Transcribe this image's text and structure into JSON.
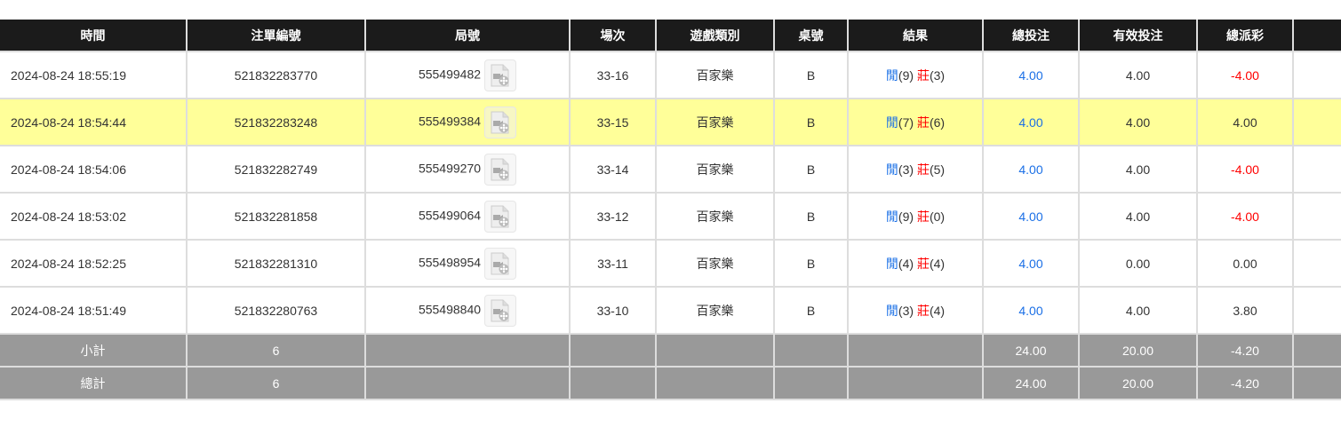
{
  "columns": [
    "時間",
    "注單編號",
    "局號",
    "場次",
    "遊戲類別",
    "桌號",
    "結果",
    "總投注",
    "有效投注",
    "總派彩",
    ""
  ],
  "rows": [
    {
      "time": "2024-08-24 18:55:19",
      "bet_id": "521832283770",
      "round": "555499482",
      "shoe": "33-16",
      "game": "百家樂",
      "table": "B",
      "player": "閒",
      "player_pts": "(9)",
      "banker": "莊",
      "banker_pts": "(3)",
      "total": "4.00",
      "valid": "4.00",
      "payout": "-4.00",
      "neg": true,
      "highlight": false
    },
    {
      "time": "2024-08-24 18:54:44",
      "bet_id": "521832283248",
      "round": "555499384",
      "shoe": "33-15",
      "game": "百家樂",
      "table": "B",
      "player": "閒",
      "player_pts": "(7)",
      "banker": "莊",
      "banker_pts": "(6)",
      "total": "4.00",
      "valid": "4.00",
      "payout": "4.00",
      "neg": false,
      "highlight": true
    },
    {
      "time": "2024-08-24 18:54:06",
      "bet_id": "521832282749",
      "round": "555499270",
      "shoe": "33-14",
      "game": "百家樂",
      "table": "B",
      "player": "閒",
      "player_pts": "(3)",
      "banker": "莊",
      "banker_pts": "(5)",
      "total": "4.00",
      "valid": "4.00",
      "payout": "-4.00",
      "neg": true,
      "highlight": false
    },
    {
      "time": "2024-08-24 18:53:02",
      "bet_id": "521832281858",
      "round": "555499064",
      "shoe": "33-12",
      "game": "百家樂",
      "table": "B",
      "player": "閒",
      "player_pts": "(9)",
      "banker": "莊",
      "banker_pts": "(0)",
      "total": "4.00",
      "valid": "4.00",
      "payout": "-4.00",
      "neg": true,
      "highlight": false
    },
    {
      "time": "2024-08-24 18:52:25",
      "bet_id": "521832281310",
      "round": "555498954",
      "shoe": "33-11",
      "game": "百家樂",
      "table": "B",
      "player": "閒",
      "player_pts": "(4)",
      "banker": "莊",
      "banker_pts": "(4)",
      "total": "4.00",
      "valid": "0.00",
      "payout": "0.00",
      "neg": false,
      "highlight": false
    },
    {
      "time": "2024-08-24 18:51:49",
      "bet_id": "521832280763",
      "round": "555498840",
      "shoe": "33-10",
      "game": "百家樂",
      "table": "B",
      "player": "閒",
      "player_pts": "(3)",
      "banker": "莊",
      "banker_pts": "(4)",
      "total": "4.00",
      "valid": "4.00",
      "payout": "3.80",
      "neg": false,
      "highlight": false
    }
  ],
  "summary": [
    {
      "label": "小計",
      "count": "6",
      "total": "24.00",
      "valid": "20.00",
      "payout": "-4.20"
    },
    {
      "label": "總計",
      "count": "6",
      "total": "24.00",
      "valid": "20.00",
      "payout": "-4.20"
    }
  ],
  "icons": {
    "replay": "video-replay-icon"
  },
  "colors": {
    "player": "#1a6fe6",
    "banker": "#ff0000",
    "highlight": "#ffff99",
    "header": "#1b1b1b",
    "summary": "#999999"
  }
}
